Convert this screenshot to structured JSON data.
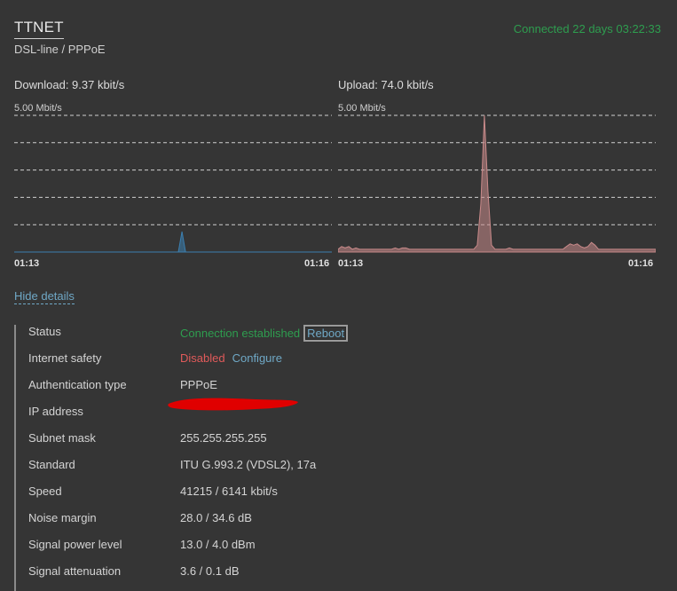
{
  "header": {
    "title": "TTNET",
    "subtitle": "DSL-line / PPPoE",
    "uptime": "Connected 22 days 03:22:33"
  },
  "download": {
    "label": "Download: 9.37 kbit/s",
    "scale": "5.00 Mbit/s",
    "time_start": "01:13",
    "time_end": "01:16",
    "color": "#3b7fb0",
    "samples": [
      0,
      0,
      0,
      0,
      0,
      0,
      0,
      0,
      0,
      0,
      0,
      0,
      0,
      0,
      0,
      0,
      0,
      0,
      0,
      0,
      0,
      0,
      0,
      0,
      0,
      0,
      0,
      0,
      0,
      0,
      0,
      0,
      0,
      0,
      0,
      0,
      0,
      0,
      0,
      0,
      0,
      0,
      0,
      0,
      0,
      0,
      0,
      0.15,
      0,
      0,
      0,
      0,
      0,
      0,
      0,
      0,
      0,
      0,
      0,
      0,
      0,
      0,
      0,
      0,
      0,
      0,
      0,
      0,
      0,
      0,
      0,
      0,
      0,
      0,
      0,
      0,
      0,
      0,
      0,
      0,
      0,
      0,
      0,
      0,
      0,
      0,
      0,
      0,
      0,
      0
    ]
  },
  "upload": {
    "label": "Upload: 74.0 kbit/s",
    "scale": "5.00 Mbit/s",
    "time_start": "01:13",
    "time_end": "01:16",
    "color": "#c98a8a",
    "samples": [
      0.02,
      0.04,
      0.03,
      0.04,
      0.02,
      0.03,
      0.02,
      0.02,
      0.02,
      0.02,
      0.02,
      0.02,
      0.02,
      0.02,
      0.02,
      0.02,
      0.03,
      0.02,
      0.03,
      0.03,
      0.02,
      0.02,
      0.02,
      0.02,
      0.02,
      0.02,
      0.02,
      0.02,
      0.02,
      0.02,
      0.02,
      0.02,
      0.02,
      0.02,
      0.02,
      0.02,
      0.02,
      0.02,
      0.02,
      0.05,
      0.35,
      1.05,
      0.45,
      0.05,
      0.02,
      0.02,
      0.02,
      0.02,
      0.03,
      0.02,
      0.02,
      0.02,
      0.02,
      0.02,
      0.02,
      0.02,
      0.02,
      0.02,
      0.02,
      0.02,
      0.02,
      0.02,
      0.02,
      0.02,
      0.04,
      0.06,
      0.05,
      0.06,
      0.04,
      0.03,
      0.04,
      0.07,
      0.05,
      0.02,
      0.02,
      0.02,
      0.02,
      0.02,
      0.02,
      0.02,
      0.02,
      0.02,
      0.02,
      0.02,
      0.02,
      0.02,
      0.02,
      0.02,
      0.02,
      0.02
    ]
  },
  "toggle_details": "Hide details",
  "details": {
    "status_label": "Status",
    "status_value": "Connection established",
    "reboot": "Reboot",
    "safety_label": "Internet safety",
    "safety_value": "Disabled",
    "configure": "Configure",
    "auth_label": "Authentication type",
    "auth_value": "PPPoE",
    "ip_label": "IP address",
    "mask_label": "Subnet mask",
    "mask_value": "255.255.255.255",
    "standard_label": "Standard",
    "standard_value": "ITU G.993.2 (VDSL2), 17a",
    "speed_label": "Speed",
    "speed_value": "41215 / 6141 kbit/s",
    "noise_label": "Noise margin",
    "noise_value": "28.0 / 34.6 dB",
    "power_label": "Signal power level",
    "power_value": "13.0 / 4.0 dBm",
    "atten_label": "Signal attenuation",
    "atten_value": "3.6 / 0.1 dB"
  }
}
